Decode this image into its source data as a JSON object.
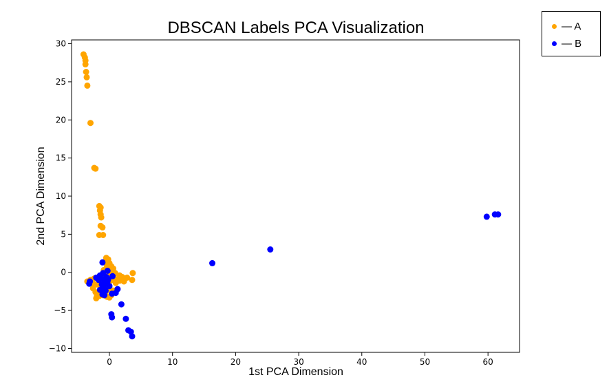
{
  "chart_data": {
    "type": "scatter",
    "title": "DBSCAN Labels PCA Visualization",
    "xlabel": "1st PCA Dimension",
    "ylabel": "2nd PCA Dimension",
    "xlim": [
      -6,
      65
    ],
    "ylim": [
      -10.5,
      30.5
    ],
    "xticks": [
      0,
      10,
      20,
      30,
      40,
      50,
      60
    ],
    "yticks": [
      -10,
      -5,
      0,
      5,
      10,
      15,
      20,
      25,
      30
    ],
    "grid": false,
    "legend_position": "outside-top-right",
    "series": [
      {
        "name": "A",
        "color": "#FFA500",
        "points": [
          [
            -4.1,
            28.6
          ],
          [
            -3.9,
            28.2
          ],
          [
            -3.8,
            27.8
          ],
          [
            -3.8,
            27.3
          ],
          [
            -3.7,
            26.3
          ],
          [
            -3.6,
            25.6
          ],
          [
            -3.5,
            24.5
          ],
          [
            -3.0,
            19.6
          ],
          [
            -2.4,
            13.7
          ],
          [
            -2.2,
            13.6
          ],
          [
            -1.6,
            8.7
          ],
          [
            -1.4,
            8.5
          ],
          [
            -1.5,
            8.1
          ],
          [
            -1.4,
            7.6
          ],
          [
            -1.3,
            7.2
          ],
          [
            -1.4,
            6.1
          ],
          [
            -1.1,
            5.9
          ],
          [
            -1.6,
            4.9
          ],
          [
            -1.0,
            4.9
          ],
          [
            -0.5,
            1.9
          ],
          [
            -0.2,
            1.7
          ],
          [
            -0.6,
            1.4
          ],
          [
            0.0,
            1.2
          ],
          [
            -0.4,
            0.9
          ],
          [
            0.3,
            0.8
          ],
          [
            0.6,
            0.5
          ],
          [
            -0.9,
            0.3
          ],
          [
            -0.5,
            0.2
          ],
          [
            0.2,
            0.0
          ],
          [
            0.9,
            -0.1
          ],
          [
            -0.2,
            -0.2
          ],
          [
            0.4,
            -0.3
          ],
          [
            1.6,
            -0.4
          ],
          [
            2.0,
            -0.6
          ],
          [
            2.5,
            -0.8
          ],
          [
            3.7,
            -0.1
          ],
          [
            3.6,
            -1.0
          ],
          [
            1.2,
            -0.9
          ],
          [
            0.5,
            -1.0
          ],
          [
            -0.7,
            -0.9
          ],
          [
            -1.2,
            -0.8
          ],
          [
            -1.7,
            -0.7
          ],
          [
            -2.4,
            -0.8
          ],
          [
            -3.0,
            -1.0
          ],
          [
            -3.2,
            -1.4
          ],
          [
            -2.6,
            -1.5
          ],
          [
            -1.9,
            -1.6
          ],
          [
            -1.3,
            -1.7
          ],
          [
            -0.8,
            -2.0
          ],
          [
            -0.3,
            -2.2
          ],
          [
            0.2,
            -2.3
          ],
          [
            0.7,
            -2.4
          ],
          [
            -1.4,
            -2.5
          ],
          [
            -2.2,
            -2.6
          ],
          [
            -1.8,
            -2.9
          ],
          [
            -1.0,
            -3.0
          ],
          [
            -0.4,
            -3.2
          ],
          [
            0.0,
            -3.3
          ],
          [
            -2.1,
            -3.4
          ],
          [
            -2.0,
            -3.2
          ],
          [
            1.0,
            -1.4
          ],
          [
            1.6,
            -1.1
          ],
          [
            2.3,
            -1.2
          ],
          [
            2.8,
            -0.7
          ],
          [
            -0.1,
            -1.5
          ],
          [
            -0.6,
            -2.6
          ],
          [
            0.3,
            -3.0
          ],
          [
            -1.6,
            -3.1
          ],
          [
            -2.6,
            -2.1
          ],
          [
            -3.5,
            -1.2
          ]
        ]
      },
      {
        "name": "B",
        "color": "#0000FF",
        "points": [
          [
            -1.1,
            1.3
          ],
          [
            -0.3,
            0.2
          ],
          [
            -1.0,
            -0.1
          ],
          [
            -1.5,
            -0.4
          ],
          [
            -0.5,
            -0.6
          ],
          [
            -2.1,
            -0.7
          ],
          [
            -1.3,
            -0.8
          ],
          [
            -0.2,
            -0.9
          ],
          [
            -1.7,
            -1.0
          ],
          [
            -0.8,
            -1.1
          ],
          [
            -3.1,
            -1.2
          ],
          [
            -3.2,
            -1.5
          ],
          [
            -0.4,
            -1.4
          ],
          [
            -1.2,
            -1.6
          ],
          [
            -0.9,
            -2.0
          ],
          [
            -1.5,
            -2.3
          ],
          [
            -0.6,
            -2.4
          ],
          [
            -1.0,
            -2.6
          ],
          [
            -1.1,
            -2.9
          ],
          [
            -0.8,
            -3.0
          ],
          [
            1.3,
            -2.2
          ],
          [
            1.0,
            -2.7
          ],
          [
            0.4,
            -2.8
          ],
          [
            0.0,
            -1.8
          ],
          [
            0.5,
            -0.5
          ],
          [
            -0.3,
            -1.2
          ],
          [
            1.9,
            -4.2
          ],
          [
            0.3,
            -5.5
          ],
          [
            0.4,
            -5.9
          ],
          [
            2.6,
            -6.1
          ],
          [
            3.0,
            -7.6
          ],
          [
            3.4,
            -7.8
          ],
          [
            3.6,
            -8.4
          ],
          [
            16.3,
            1.2
          ],
          [
            25.5,
            3.0
          ],
          [
            59.8,
            7.3
          ],
          [
            61.1,
            7.6
          ],
          [
            61.6,
            7.6
          ]
        ]
      }
    ]
  },
  "legend": {
    "items": [
      {
        "label": "— A",
        "color": "#FFA500"
      },
      {
        "label": "— B",
        "color": "#0000FF"
      }
    ]
  }
}
